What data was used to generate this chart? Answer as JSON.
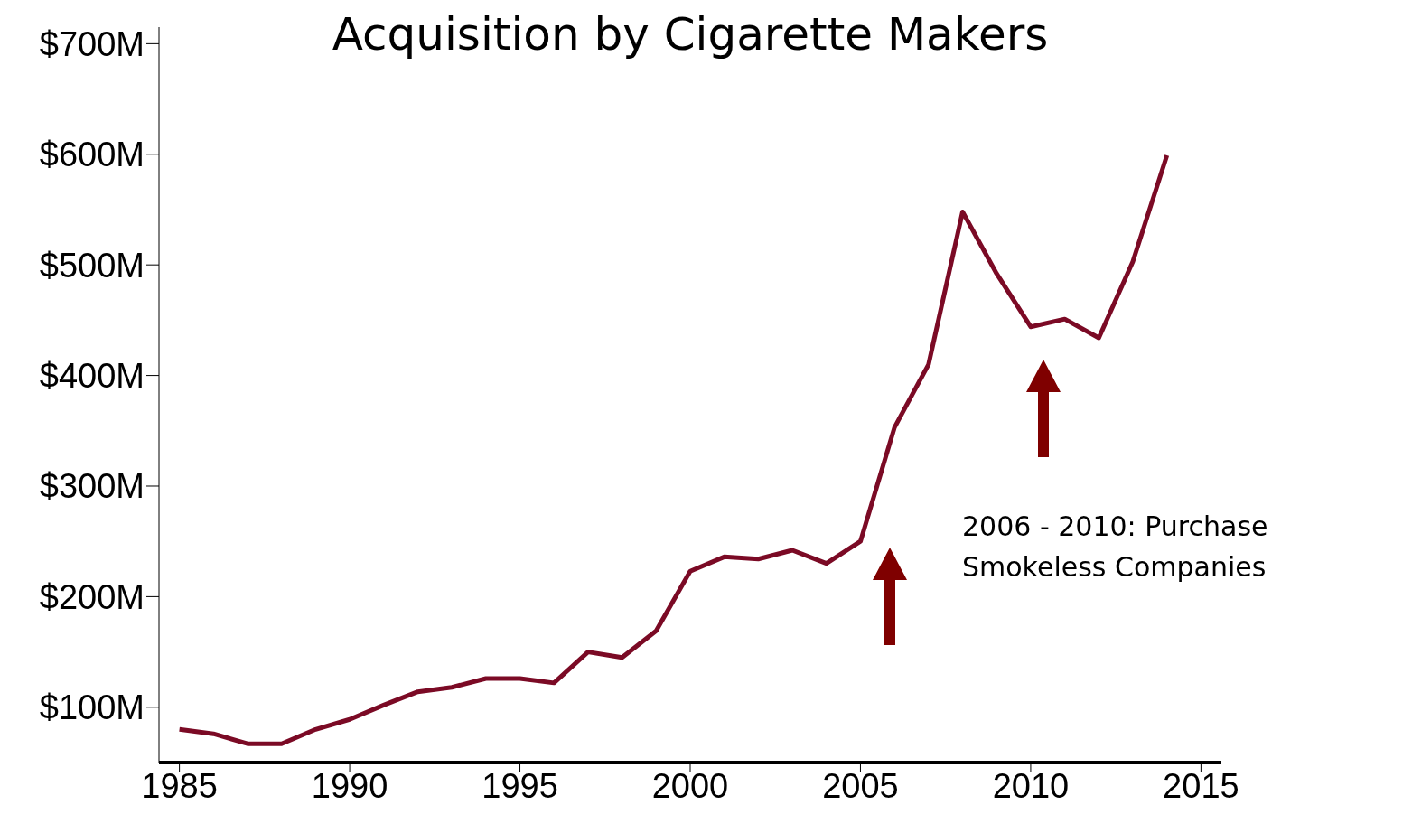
{
  "chart_data": {
    "type": "line",
    "title": "Acquisition by Cigarette Makers",
    "x": [
      1985,
      1986,
      1987,
      1988,
      1989,
      1990,
      1991,
      1992,
      1993,
      1994,
      1995,
      1996,
      1997,
      1998,
      1999,
      2000,
      2001,
      2002,
      2003,
      2004,
      2005,
      2006,
      2007,
      2008,
      2009,
      2010,
      2011,
      2012,
      2013,
      2014
    ],
    "series": [
      {
        "color": "#7b0a25",
        "values": [
          80,
          76,
          67,
          67,
          80,
          89,
          102,
          114,
          118,
          126,
          126,
          122,
          150,
          145,
          169,
          223,
          236,
          234,
          242,
          230,
          250,
          353,
          410,
          548,
          492,
          444,
          451,
          434,
          503,
          599
        ]
      }
    ],
    "xlim": [
      1984.4,
      2015.6
    ],
    "xticks": [
      1985,
      1990,
      1995,
      2000,
      2005,
      2010,
      2015
    ],
    "ylim": [
      50,
      715
    ],
    "yticks": [
      {
        "value": 100,
        "label": "$100M"
      },
      {
        "value": 200,
        "label": "$200M"
      },
      {
        "value": 300,
        "label": "$300M"
      },
      {
        "value": 400,
        "label": "$400M"
      },
      {
        "value": 500,
        "label": "$500M"
      },
      {
        "value": 600,
        "label": "$600M"
      },
      {
        "value": 700,
        "label": "$700M"
      }
    ],
    "annotations": [
      "2006 - 2010: Purchase Smokeless Companies"
    ],
    "grid": false,
    "legend": false,
    "marker": "none",
    "line_style": "solid"
  }
}
